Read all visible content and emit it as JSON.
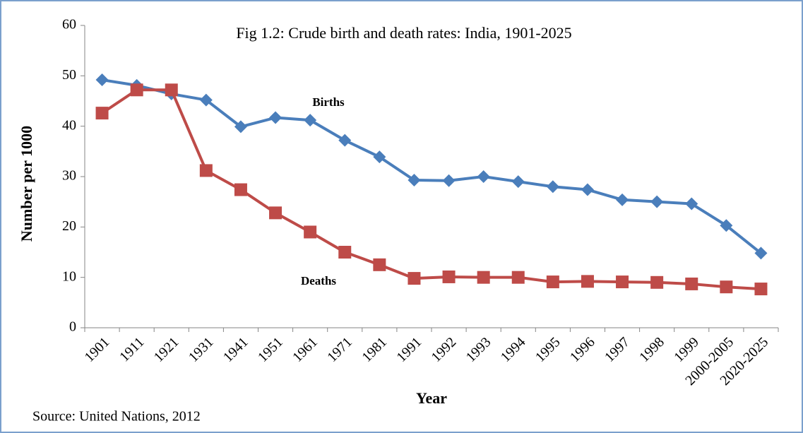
{
  "chart_data": {
    "type": "line",
    "title": "Fig 1.2: Crude birth and death rates: India, 1901-2025",
    "x_label": "Year",
    "y_label": "Number per 1000",
    "source": "Source: United Nations, 2012",
    "annotations": [
      "Births",
      "Deaths"
    ],
    "categories": [
      "1901",
      "1911",
      "1921",
      "1931",
      "1941",
      "1951",
      "1961",
      "1971",
      "1981",
      "1991",
      "1992",
      "1993",
      "1994",
      "1995",
      "1996",
      "1997",
      "1998",
      "1999",
      "2000-2005",
      "2020-2025"
    ],
    "series": [
      {
        "name": "Births",
        "color": "#4a7ebb",
        "marker": "diamond",
        "values": [
          49.2,
          48.1,
          46.4,
          45.2,
          39.9,
          41.7,
          41.2,
          37.2,
          33.9,
          29.3,
          29.2,
          30.0,
          29.0,
          28.0,
          27.4,
          25.4,
          25.0,
          24.6,
          20.3,
          14.8
        ]
      },
      {
        "name": "Deaths",
        "color": "#be4b48",
        "marker": "square",
        "values": [
          42.6,
          47.2,
          47.2,
          31.2,
          27.4,
          22.8,
          19.0,
          15.0,
          12.5,
          9.8,
          10.1,
          10.0,
          10.0,
          9.1,
          9.2,
          9.1,
          9.0,
          8.7,
          8.1,
          7.7
        ]
      }
    ],
    "ylim": [
      0,
      60
    ],
    "yticks": [
      0,
      10,
      20,
      30,
      40,
      50,
      60
    ],
    "grid": false
  }
}
